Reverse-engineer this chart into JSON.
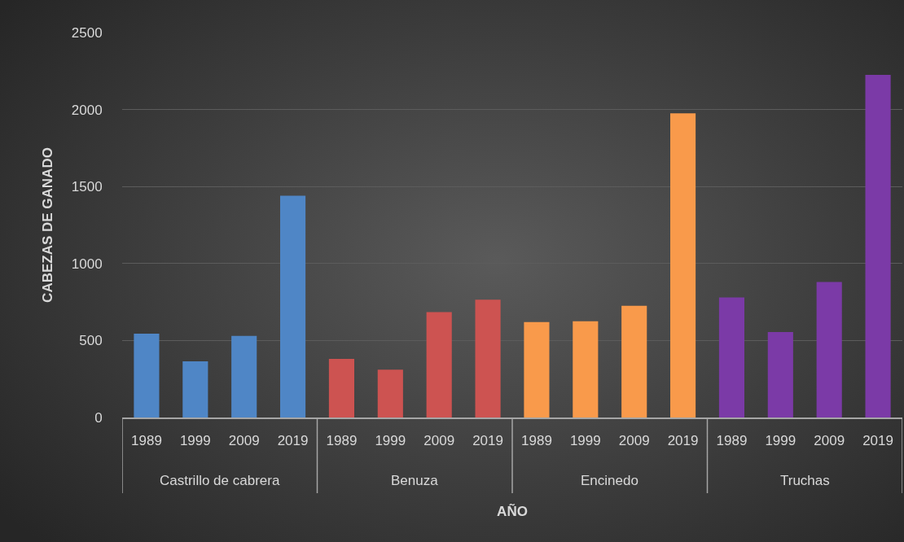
{
  "chart_data": {
    "type": "bar",
    "xlabel": "AÑO",
    "ylabel": "CABEZAS DE GANADO",
    "categories": [
      "1989",
      "1999",
      "2009",
      "2019",
      "1989",
      "1999",
      "2009",
      "2019",
      "1989",
      "1999",
      "2009",
      "2019",
      "1989",
      "1999",
      "2009",
      "2019"
    ],
    "values": [
      545,
      365,
      530,
      1440,
      380,
      310,
      685,
      765,
      620,
      625,
      725,
      1975,
      780,
      555,
      880,
      2225
    ],
    "colors": [
      "#4f86c6",
      "#4f86c6",
      "#4f86c6",
      "#4f86c6",
      "#cd5351",
      "#cd5351",
      "#cd5351",
      "#cd5351",
      "#f99a4b",
      "#f99a4b",
      "#f99a4b",
      "#f99a4b",
      "#7b3aa7",
      "#7b3aa7",
      "#7b3aa7",
      "#7b3aa7"
    ],
    "annotations": [
      "Castrillo de cabrera",
      "Benuza",
      "Encinedo",
      "Truchas"
    ],
    "ylim": [
      0,
      2500
    ],
    "yticks": [
      0,
      500,
      1000,
      1500,
      2000,
      2500
    ],
    "grid": "y"
  }
}
